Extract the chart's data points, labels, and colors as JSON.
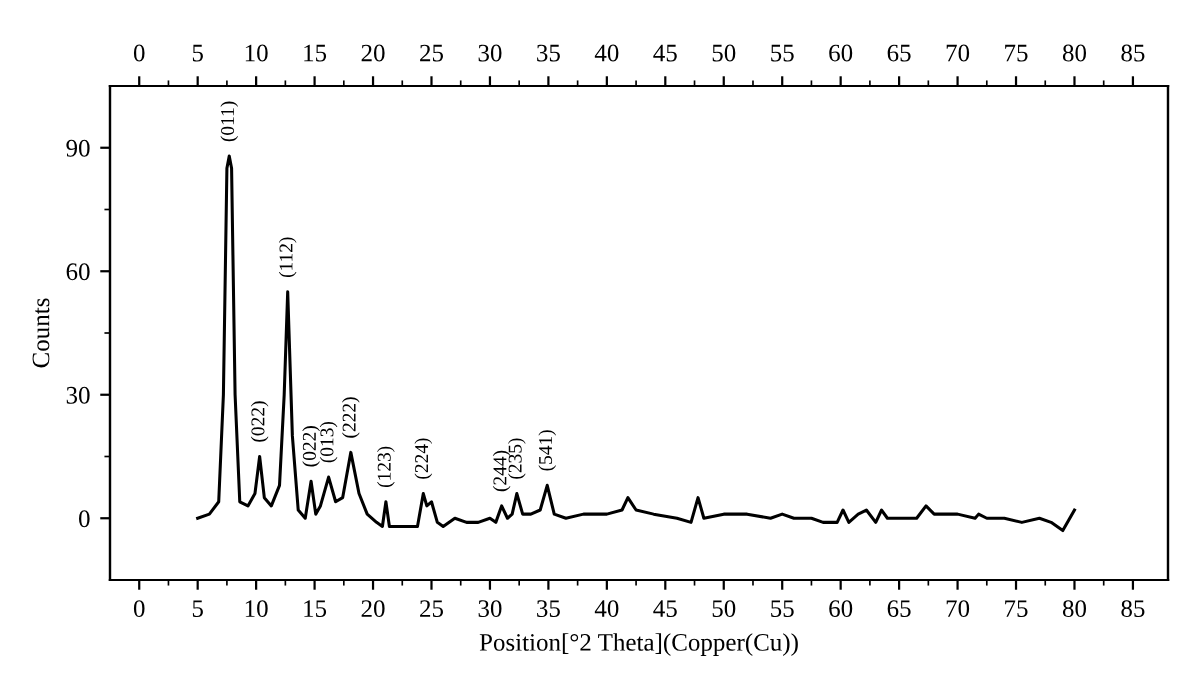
{
  "chart_data": {
    "type": "line",
    "xlabel": "Position[°2 Theta](Copper(Cu))",
    "ylabel": "Counts",
    "xlim": [
      -2.5,
      88
    ],
    "xticks": [
      0,
      5,
      10,
      15,
      20,
      25,
      30,
      35,
      40,
      45,
      50,
      55,
      60,
      65,
      70,
      75,
      80,
      85
    ],
    "x2lim": [
      -2.5,
      88
    ],
    "x2ticks": [
      0,
      5,
      10,
      15,
      20,
      25,
      30,
      35,
      40,
      45,
      50,
      55,
      60,
      65,
      70,
      75,
      80,
      85
    ],
    "ylim": [
      -15,
      105
    ],
    "yticks": [
      0,
      30,
      60,
      90
    ],
    "grid": false,
    "legend": false,
    "marker": "none",
    "line_style": "solid",
    "series": [
      {
        "color": "#000000",
        "x": [
          5.0,
          6.0,
          6.8,
          7.2,
          7.5,
          7.7,
          7.9,
          8.2,
          8.6,
          9.3,
          9.9,
          10.3,
          10.7,
          11.3,
          12.0,
          12.4,
          12.7,
          13.1,
          13.6,
          14.2,
          14.7,
          15.1,
          15.5,
          16.2,
          16.8,
          17.4,
          18.1,
          18.8,
          19.5,
          20.3,
          20.8,
          21.1,
          21.4,
          22.0,
          23.0,
          23.8,
          24.3,
          24.6,
          25.0,
          25.5,
          26.0,
          27.0,
          28.0,
          29.0,
          30.0,
          30.5,
          31.0,
          31.5,
          31.9,
          32.3,
          32.8,
          33.5,
          34.3,
          34.9,
          35.5,
          36.5,
          38.0,
          40.0,
          41.3,
          41.8,
          42.5,
          44.0,
          46.0,
          47.2,
          47.8,
          48.3,
          50.0,
          52.0,
          54.0,
          55.0,
          56.0,
          57.5,
          58.5,
          59.7,
          60.2,
          60.7,
          61.5,
          62.2,
          63.0,
          63.5,
          64.0,
          65.0,
          66.5,
          67.3,
          68.0,
          70.0,
          71.5,
          71.8,
          72.5,
          74.0,
          75.5,
          77.0,
          78.0,
          79.0,
          80.0
        ],
        "values": [
          0,
          1,
          4,
          30,
          85,
          88,
          85,
          30,
          4,
          3,
          6,
          15,
          5,
          3,
          8,
          30,
          55,
          20,
          2,
          0,
          9,
          1,
          3,
          10,
          4,
          5,
          16,
          6,
          1,
          -1,
          -2,
          4,
          -2,
          -2,
          -2,
          -2,
          6,
          3,
          4,
          -1,
          -2,
          0,
          -1,
          -1,
          0,
          -1,
          3,
          0,
          1,
          6,
          1,
          1,
          2,
          8,
          1,
          0,
          1,
          1,
          2,
          5,
          2,
          1,
          0,
          -1,
          5,
          0,
          1,
          1,
          0,
          1,
          0,
          0,
          -1,
          -1,
          2,
          -1,
          1,
          2,
          -1,
          2,
          0,
          0,
          0,
          3,
          1,
          1,
          0,
          1,
          0,
          0,
          -1,
          0,
          -1,
          -3,
          2
        ]
      }
    ],
    "annotations": [
      {
        "text": "(011)",
        "x": 7.7,
        "y": 88
      },
      {
        "text": "(022)",
        "x": 10.3,
        "y": 15
      },
      {
        "text": "(112)",
        "x": 12.7,
        "y": 55
      },
      {
        "text": "(022)",
        "x": 14.7,
        "y": 9
      },
      {
        "text": "(013)",
        "x": 16.2,
        "y": 10
      },
      {
        "text": "(222)",
        "x": 18.1,
        "y": 16
      },
      {
        "text": "(123)",
        "x": 21.1,
        "y": 4
      },
      {
        "text": "(224)",
        "x": 24.3,
        "y": 6
      },
      {
        "text": "(244)",
        "x": 31.0,
        "y": 3
      },
      {
        "text": "(235)",
        "x": 32.3,
        "y": 6
      },
      {
        "text": "(541)",
        "x": 34.9,
        "y": 8
      }
    ]
  }
}
